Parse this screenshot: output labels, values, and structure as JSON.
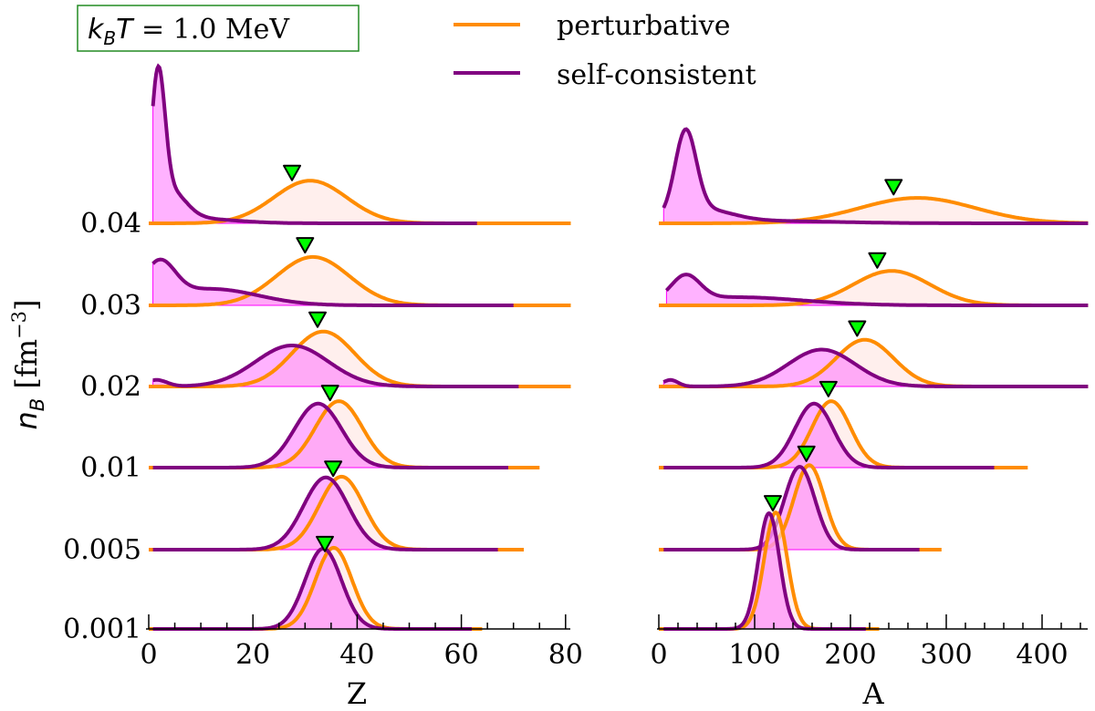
{
  "chart_data": {
    "type": "ridgeline",
    "annotation": {
      "k": "k",
      "sub": "B",
      "T": "T",
      "rest": " = 1.0 MeV"
    },
    "legend": [
      {
        "label": "perturbative",
        "color": "#ff8c00"
      },
      {
        "label": "self-consistent",
        "color": "#800080"
      }
    ],
    "legend_position": "top-center",
    "ylabel": {
      "n": "n",
      "sub": "B",
      "unit": " [fm",
      "exp": "−3",
      "close": "]"
    },
    "fill_colors": {
      "perturbative": "#ffe4e1",
      "self_consistent": "#ff66ff",
      "marker": "#00ff00"
    },
    "panels": [
      {
        "xlabel": "Z",
        "xlim": [
          0,
          82
        ],
        "major_ticks": [
          0,
          20,
          40,
          60,
          80
        ],
        "minor_step": 5,
        "tick_labels": [
          "0",
          "20",
          "40",
          "60",
          "80"
        ]
      },
      {
        "xlabel": "A",
        "xlim": [
          0,
          448
        ],
        "major_ticks": [
          0,
          100,
          200,
          300,
          400
        ],
        "minor_step": 20,
        "tick_labels": [
          "0",
          "100",
          "200",
          "300",
          "400"
        ]
      }
    ],
    "ridges": [
      {
        "nB": "0.04",
        "Z": {
          "pert": [
            {
              "mu": 31,
              "s": 7,
              "a": 0.52
            }
          ],
          "pert_end": 81,
          "sc": [
            {
              "mu": 1.8,
              "s": 1.3,
              "a": 1.6
            },
            {
              "mu": 4,
              "s": 3,
              "a": 0.35
            },
            {
              "mu": 8,
              "s": 8,
              "a": 0.06
            }
          ],
          "sc_start": 0.8,
          "sc_end": 63,
          "marker": 27.5
        },
        "A": {
          "pert": [
            {
              "mu": 270,
              "s": 60,
              "a": 0.31
            }
          ],
          "pert_end": 448,
          "sc": [
            {
              "mu": 28,
              "s": 11,
              "a": 1.0
            },
            {
              "mu": 45,
              "s": 30,
              "a": 0.15
            },
            {
              "mu": 100,
              "s": 80,
              "a": 0.03
            }
          ],
          "sc_start": 5,
          "sc_end": 448,
          "marker": 245
        }
      },
      {
        "nB": "0.03",
        "Z": {
          "pert": [
            {
              "mu": 31.5,
              "s": 7,
              "a": 0.59
            }
          ],
          "pert_end": 81,
          "sc": [
            {
              "mu": 2,
              "s": 3,
              "a": 0.45
            },
            {
              "mu": 12,
              "s": 9,
              "a": 0.2
            }
          ],
          "sc_start": 0.8,
          "sc_end": 70,
          "marker": 30
        },
        "A": {
          "pert": [
            {
              "mu": 243,
              "s": 40,
              "a": 0.42
            }
          ],
          "pert_end": 448,
          "sc": [
            {
              "mu": 28,
              "s": 15,
              "a": 0.3
            },
            {
              "mu": 80,
              "s": 70,
              "a": 0.1
            }
          ],
          "sc_start": 8,
          "sc_end": 448,
          "marker": 228
        }
      },
      {
        "nB": "0.02",
        "Z": {
          "pert": [
            {
              "mu": 33.5,
              "s": 6,
              "a": 0.67
            }
          ],
          "pert_end": 81,
          "sc": [
            {
              "mu": 27.5,
              "s": 7,
              "a": 0.5
            },
            {
              "mu": 1.5,
              "s": 2,
              "a": 0.08
            }
          ],
          "sc_start": 0.8,
          "sc_end": 71,
          "marker": 32.4
        },
        "A": {
          "pert": [
            {
              "mu": 215,
              "s": 30,
              "a": 0.57
            }
          ],
          "pert_end": 448,
          "sc": [
            {
              "mu": 170,
              "s": 35,
              "a": 0.45
            },
            {
              "mu": 12,
              "s": 8,
              "a": 0.08
            }
          ],
          "sc_start": 5,
          "sc_end": 448,
          "marker": 207
        }
      },
      {
        "nB": "0.01",
        "Z": {
          "pert": [
            {
              "mu": 36.5,
              "s": 4.5,
              "a": 0.81
            }
          ],
          "pert_end": 75,
          "sc": [
            {
              "mu": 32.5,
              "s": 4.5,
              "a": 0.78
            }
          ],
          "sc_start": 0.8,
          "sc_end": 69,
          "marker": 34.8
        },
        "A": {
          "pert": [
            {
              "mu": 180,
              "s": 20,
              "a": 0.81
            }
          ],
          "pert_end": 385,
          "sc": [
            {
              "mu": 162,
              "s": 20,
              "a": 0.78
            }
          ],
          "sc_start": 5,
          "sc_end": 350,
          "marker": 177
        }
      },
      {
        "nB": "0.005",
        "Z": {
          "pert": [
            {
              "mu": 37,
              "s": 4.3,
              "a": 0.89
            }
          ],
          "pert_end": 72,
          "sc": [
            {
              "mu": 34,
              "s": 4.3,
              "a": 0.88
            }
          ],
          "sc_start": 0.8,
          "sc_end": 67,
          "marker": 35.4
        },
        "A": {
          "pert": [
            {
              "mu": 157,
              "s": 16,
              "a": 1.03
            }
          ],
          "pert_end": 295,
          "sc": [
            {
              "mu": 147,
              "s": 16,
              "a": 1.01
            }
          ],
          "sc_start": 5,
          "sc_end": 272,
          "marker": 154
        }
      },
      {
        "nB": "0.001",
        "Z": {
          "pert": [
            {
              "mu": 35.5,
              "s": 3.5,
              "a": 0.99
            }
          ],
          "pert_end": 64,
          "sc": [
            {
              "mu": 33.5,
              "s": 3.5,
              "a": 0.98
            }
          ],
          "sc_start": 0.8,
          "sc_end": 62,
          "marker": 33.8
        },
        "A": {
          "pert": [
            {
              "mu": 122,
              "s": 12,
              "a": 1.42
            }
          ],
          "pert_end": 230,
          "sc": [
            {
              "mu": 115,
              "s": 11,
              "a": 1.41
            }
          ],
          "sc_start": 5,
          "sc_end": 216,
          "marker": 119
        }
      }
    ]
  }
}
